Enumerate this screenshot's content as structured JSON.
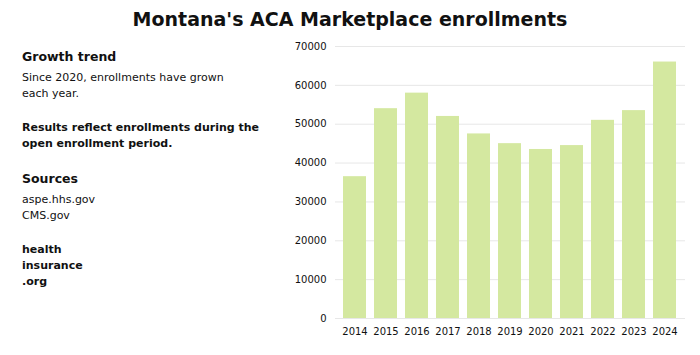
{
  "chart_data": {
    "type": "bar",
    "title": "Montana's ACA Marketplace enrollments",
    "categories": [
      "2014",
      "2015",
      "2016",
      "2017",
      "2018",
      "2019",
      "2020",
      "2021",
      "2022",
      "2023",
      "2024"
    ],
    "values": [
      36500,
      54000,
      58000,
      52000,
      47500,
      45000,
      43500,
      44500,
      51000,
      53500,
      66000
    ],
    "color": "#d4e8a0",
    "ylim": [
      0,
      70000
    ],
    "yticks": [
      0,
      10000,
      20000,
      30000,
      40000,
      50000,
      60000,
      70000
    ],
    "grid": true,
    "annotations": [
      [
        "Growth trend",
        "Since 2020, enrollments have grown\neach year."
      ],
      [
        "Results reflect enrollments during the\nopen enrollment period."
      ],
      [
        "Sources",
        "aspe.hhs.gov\nCMS.gov"
      ],
      [
        "health\ninsurance\n.org"
      ]
    ]
  }
}
